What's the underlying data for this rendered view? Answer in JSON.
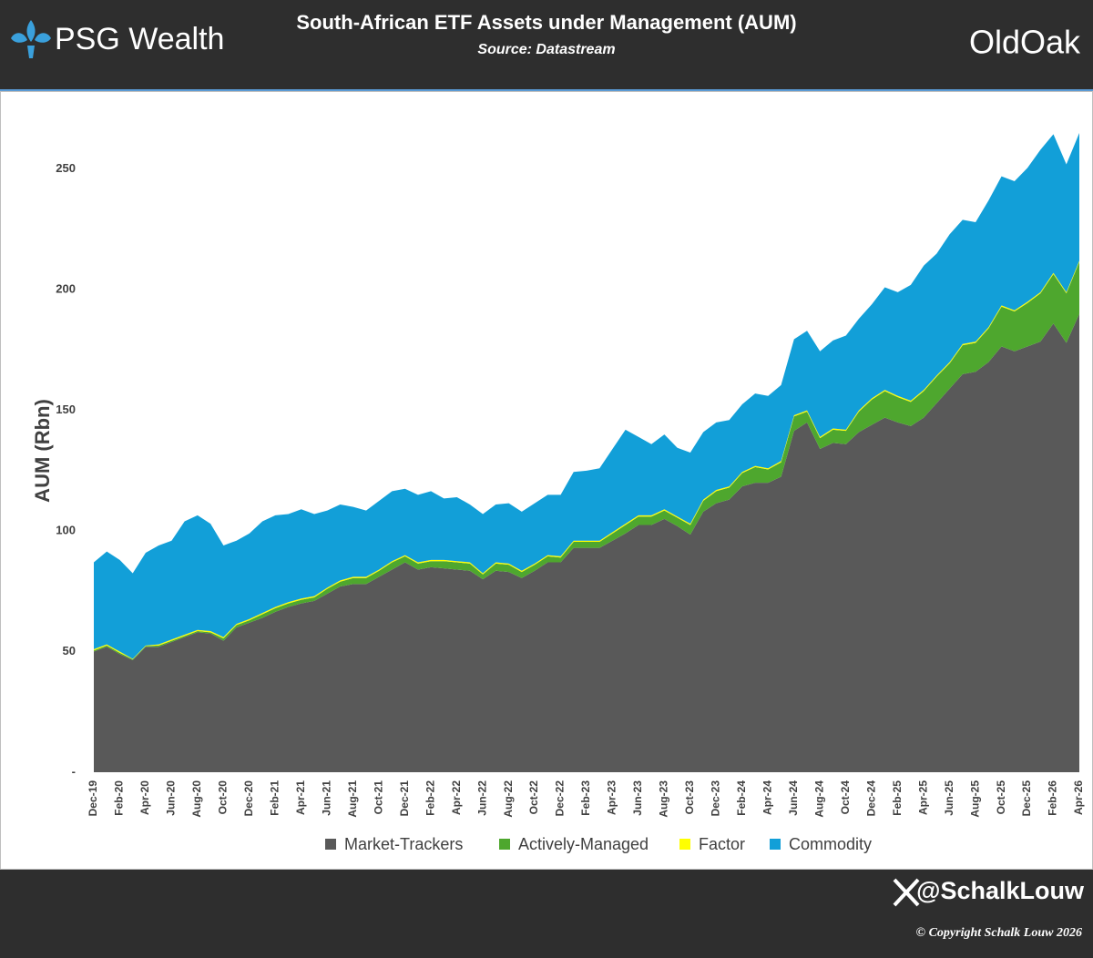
{
  "header": {
    "logo": "PSG Wealth",
    "brand": "OldOak"
  },
  "footer": {
    "handle": "@SchalkLouw",
    "copyright": "© Copyright Schalk Louw 2026"
  },
  "chart_data": {
    "type": "stacked_area",
    "title": "South-African ETF Assets under Management (AUM)",
    "subtitle": "Source: Datastream",
    "y_label": "AUM (Rbn)",
    "categories": [
      "Dec-19",
      null,
      "Feb-20",
      null,
      "Apr-20",
      null,
      "Jun-20",
      null,
      "Aug-20",
      null,
      "Oct-20",
      null,
      "Dec-20",
      null,
      "Feb-21",
      null,
      "Apr-21",
      null,
      "Jun-21",
      null,
      "Aug-21",
      null,
      "Oct-21",
      null,
      "Dec-21",
      null,
      "Feb-22",
      null,
      "Apr-22",
      null,
      "Jun-22",
      null,
      "Aug-22",
      null,
      "Oct-22",
      null,
      "Dec-22",
      null,
      "Feb-23",
      null,
      "Apr-23",
      null,
      "Jun-23",
      null,
      "Aug-23",
      null,
      "Oct-23",
      null,
      "Dec-23",
      null,
      "Feb-24",
      null,
      "Apr-24",
      null,
      "Jun-24",
      null,
      "Aug-24",
      null,
      "Oct-24",
      null,
      "Dec-24",
      null,
      "Feb-25",
      null,
      "Apr-25",
      null,
      "Jun-25",
      null,
      "Aug-25",
      null,
      "Oct-25",
      null,
      "Dec-25",
      null,
      "Feb-26",
      null,
      "Apr-26"
    ],
    "series": [
      {
        "name": "Market-Trackers",
        "color": "#595959",
        "values": [
          50,
          52,
          49,
          46.5,
          52,
          52,
          54,
          56,
          58,
          57.5,
          54.5,
          60,
          62,
          64,
          66.5,
          68.5,
          70,
          71,
          74,
          77,
          78,
          78,
          81,
          84,
          87,
          84,
          85,
          84.5,
          84,
          83.5,
          80,
          83.5,
          83,
          80.5,
          83.5,
          87,
          87,
          93,
          93,
          93,
          96,
          99,
          102.5,
          102.5,
          105,
          102,
          98.5,
          108,
          111.5,
          113,
          118.5,
          120,
          120,
          122.5,
          141.5,
          145,
          134,
          136.5,
          136,
          141,
          144,
          147,
          145,
          143.5,
          147,
          153,
          159,
          165,
          166,
          170,
          176.5,
          174.5,
          176.5,
          178.5,
          186,
          178,
          190
        ]
      },
      {
        "name": "Actively-Managed",
        "color": "#4ea72e",
        "values": [
          0.5,
          0.5,
          0.5,
          0.3,
          0.3,
          0.5,
          0.5,
          0.5,
          0.5,
          0.5,
          1,
          1,
          1,
          1.5,
          1.5,
          1.5,
          1.5,
          1.5,
          2,
          2,
          2.5,
          2.5,
          2.5,
          3,
          2.5,
          2.5,
          2.5,
          3,
          3,
          3,
          2,
          3,
          3,
          2.5,
          2.5,
          2.5,
          2,
          2.5,
          2.5,
          2.5,
          3,
          3.5,
          3.5,
          3.5,
          3.5,
          3.5,
          4,
          4.5,
          5,
          5,
          5.5,
          6.5,
          5.5,
          6,
          6,
          4.5,
          4.5,
          5.5,
          5.5,
          8.5,
          10.5,
          11,
          10.5,
          10,
          11,
          11,
          10.5,
          12,
          12,
          14,
          16.5,
          16.5,
          18,
          20,
          20.5,
          20.5,
          21.5
        ]
      },
      {
        "name": "Factor",
        "color": "#ffff00",
        "values": [
          0.5,
          0.5,
          0.5,
          0.2,
          0.2,
          0.5,
          0.5,
          0.5,
          0.5,
          0.5,
          0.5,
          0.5,
          0.5,
          0.5,
          0.5,
          0.5,
          0.5,
          0.5,
          0.5,
          0.5,
          0.5,
          0.5,
          0.5,
          0.5,
          0.5,
          0.5,
          0.5,
          0.5,
          0.5,
          0.5,
          0.5,
          0.5,
          0.5,
          0.5,
          0.5,
          0.5,
          0.5,
          0.5,
          0.5,
          0.5,
          0.5,
          0.5,
          0.5,
          0.5,
          0.5,
          0.5,
          0.5,
          0.5,
          0.5,
          0.5,
          0.5,
          0.5,
          0.5,
          0.5,
          0.5,
          0.5,
          0.5,
          0.5,
          0.5,
          0.5,
          0.5,
          0.5,
          0.5,
          0.5,
          0.5,
          0.5,
          0.5,
          0.5,
          0.5,
          0.5,
          0.5,
          0.5,
          0.5,
          0.5,
          0.5,
          0.5,
          0.5
        ]
      },
      {
        "name": "Commodity",
        "color": "#129fd8",
        "values": [
          36,
          38.5,
          38,
          35.5,
          38.5,
          41,
          41,
          47,
          47.5,
          44.5,
          38,
          34.5,
          35.5,
          38,
          38,
          36.5,
          37,
          34,
          32,
          31.5,
          29,
          27.5,
          28.5,
          29,
          27.5,
          28,
          28.5,
          25.5,
          26.5,
          24,
          24.5,
          24,
          25,
          24.5,
          25,
          25,
          25.5,
          28.5,
          29,
          30,
          34.5,
          39,
          32.5,
          29.5,
          31,
          28.5,
          29.5,
          28,
          28,
          27.5,
          28,
          30,
          30,
          31.5,
          31.5,
          33,
          35.5,
          36.5,
          39,
          38,
          39,
          42.5,
          43,
          48,
          51.5,
          50.5,
          53,
          51.5,
          49.5,
          52.5,
          53.5,
          53.5,
          55.5,
          59,
          57.5,
          53,
          53
        ]
      }
    ],
    "ylim": [
      0,
      265
    ],
    "yticks": [
      {
        "value": 0,
        "label": "-"
      },
      50,
      100,
      150,
      200,
      250
    ],
    "grid": false,
    "legend": "bottom"
  }
}
